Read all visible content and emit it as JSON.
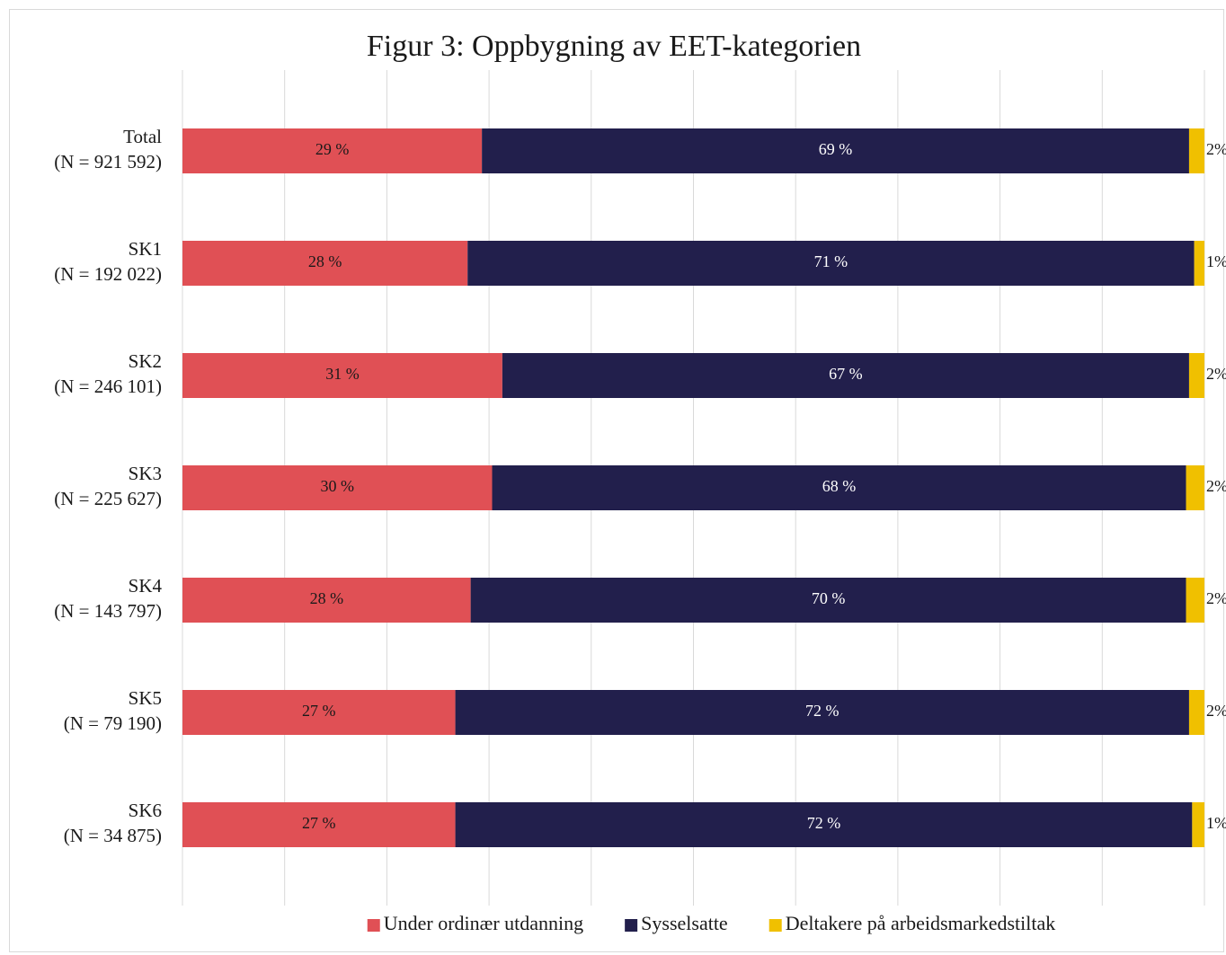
{
  "chart_data": {
    "type": "stacked-barh",
    "title": "Figur 3: Oppbygning av EET-kategorien",
    "categories": [
      [
        "Total",
        "(N = 921 592)"
      ],
      [
        "SK1",
        "(N = 192 022)"
      ],
      [
        "SK2",
        "(N = 246 101)"
      ],
      [
        "SK3",
        "(N = 225 627)"
      ],
      [
        "SK4",
        "(N = 143 797)"
      ],
      [
        "SK5",
        "(N = 79 190)"
      ],
      [
        "SK6",
        "(N = 34 875)"
      ]
    ],
    "series": [
      {
        "name": "Under ordinær utdanning",
        "color": "#e05055",
        "label_color": "#1a1a1a",
        "values": [
          29.3,
          27.9,
          31.3,
          30.3,
          28.2,
          26.7,
          26.7
        ],
        "value_labels": [
          "29 %",
          "28 %",
          "31 %",
          "30 %",
          "28 %",
          "27 %",
          "27 %"
        ]
      },
      {
        "name": "Sysselsatte",
        "color": "#221f4c",
        "label_color": "#ffffff",
        "values": [
          69.2,
          71.1,
          67.2,
          67.9,
          70.0,
          71.8,
          72.1
        ],
        "value_labels": [
          "69 %",
          "71 %",
          "67 %",
          "68 %",
          "70 %",
          "72 %",
          "72 %"
        ]
      },
      {
        "name": "Deltakere på arbeidsmarkedstiltak",
        "color": "#f0c000",
        "label_color": "#1a1a1a",
        "values": [
          1.5,
          1.0,
          1.5,
          1.8,
          1.8,
          1.5,
          1.2
        ],
        "value_labels": [
          "2%",
          "1%",
          "2%",
          "2%",
          "2%",
          "2%",
          "1%"
        ]
      }
    ],
    "xlim": [
      0,
      100
    ],
    "xticks": [
      0,
      10,
      20,
      30,
      40,
      50,
      60,
      70,
      80,
      90,
      100
    ],
    "grid": true,
    "legend": "bottom"
  }
}
